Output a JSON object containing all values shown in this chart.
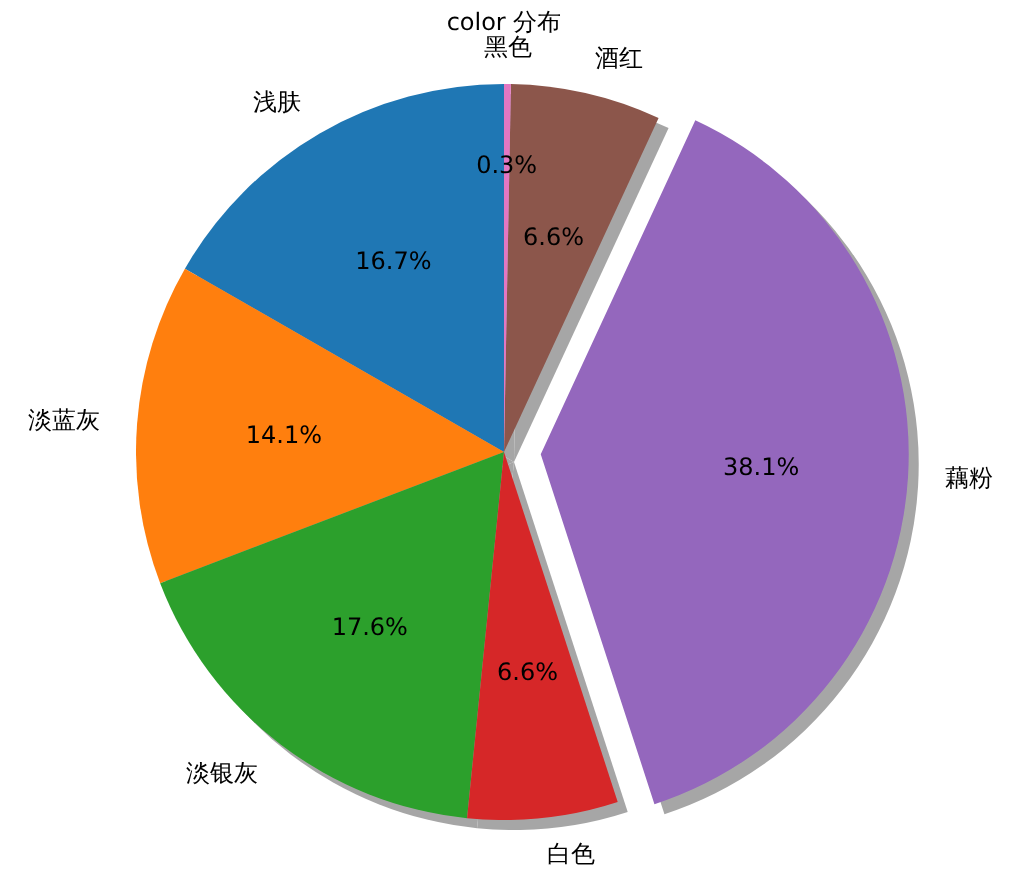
{
  "chart_data": {
    "type": "pie",
    "title": "color 分布",
    "categories": [
      "浅肤",
      "淡蓝灰",
      "淡银灰",
      "白色",
      "藕粉",
      "酒红",
      "黑色"
    ],
    "values": [
      16.7,
      14.1,
      17.6,
      6.6,
      38.1,
      6.6,
      0.3
    ],
    "colors": [
      "#1f77b4",
      "#ff7f0e",
      "#2ca02c",
      "#d62728",
      "#9467bd",
      "#8c564b",
      "#e377c2"
    ],
    "value_labels": [
      "16.7%",
      "14.1%",
      "17.6%",
      "6.6%",
      "38.1%",
      "6.6%",
      "0.3%"
    ]
  }
}
